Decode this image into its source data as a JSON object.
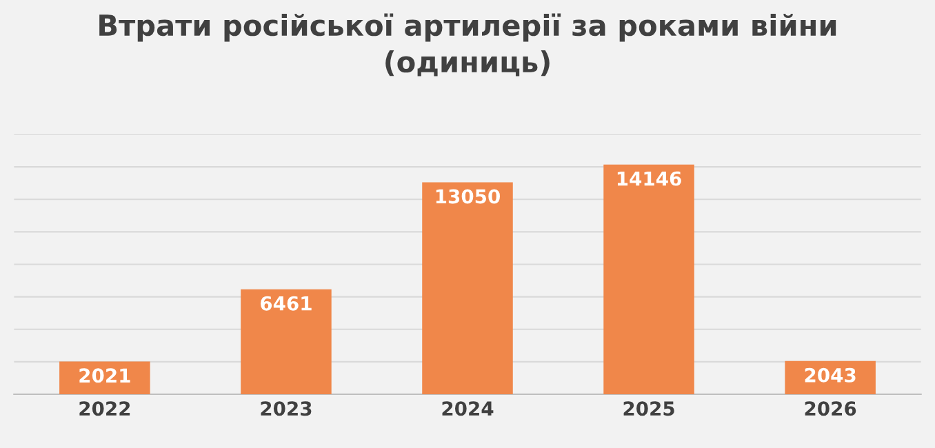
{
  "chart_data": {
    "type": "bar",
    "title": "Втрати російської артилерії за роками війни\n(одиниць)",
    "categories": [
      "2022",
      "2023",
      "2024",
      "2025",
      "2026"
    ],
    "values": [
      2021,
      6461,
      13050,
      14146,
      2043
    ],
    "color": "#f0874a",
    "ylim": [
      0,
      16000
    ],
    "yticks": [
      {
        "value": 0,
        "label": null
      },
      {
        "value": 2000,
        "label": null
      },
      {
        "value": 4000,
        "label": null
      },
      {
        "value": 6000,
        "label": null
      },
      {
        "value": 8000,
        "label": null
      },
      {
        "value": 10000,
        "label": null
      },
      {
        "value": 12000,
        "label": null
      },
      {
        "value": 14000,
        "label": null
      },
      {
        "value": 16000,
        "label": null
      }
    ],
    "grid": "y",
    "tick_labels": "x",
    "data_labels": true
  }
}
